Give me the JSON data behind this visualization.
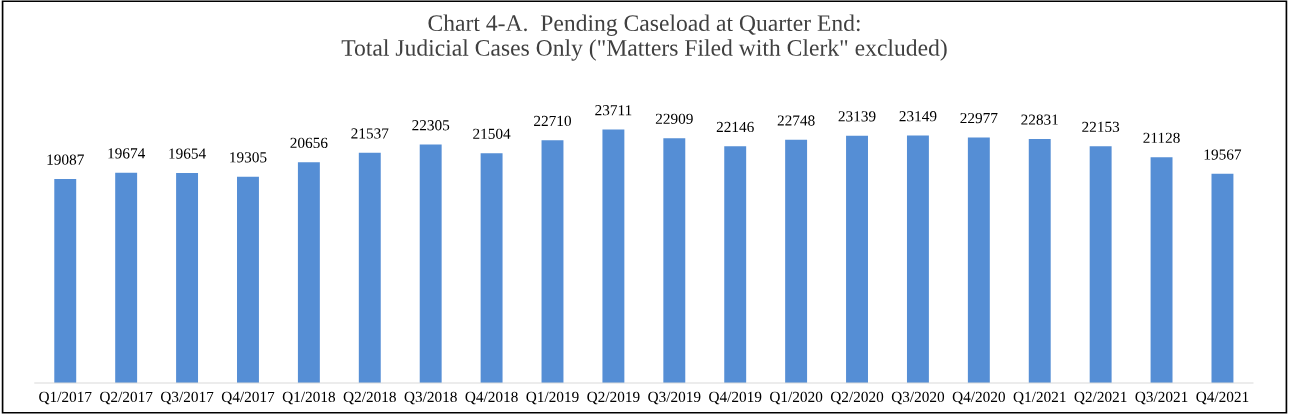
{
  "chart_data": {
    "type": "bar",
    "title": "Chart 4-A.  Pending Caseload at Quarter End:\nTotal Judicial Cases Only (\"Matters Filed with Clerk\" excluded)",
    "categories": [
      "Q1/2017",
      "Q2/2017",
      "Q3/2017",
      "Q4/2017",
      "Q1/2018",
      "Q2/2018",
      "Q3/2018",
      "Q4/2018",
      "Q1/2019",
      "Q2/2019",
      "Q3/2019",
      "Q4/2019",
      "Q1/2020",
      "Q2/2020",
      "Q3/2020",
      "Q4/2020",
      "Q1/2021",
      "Q2/2021",
      "Q3/2021",
      "Q4/2021"
    ],
    "values": [
      19087,
      19674,
      19654,
      19305,
      20656,
      21537,
      22305,
      21504,
      22710,
      23711,
      22909,
      22146,
      22748,
      23139,
      23149,
      22977,
      22831,
      22153,
      21128,
      19567
    ],
    "color": "#558ed5",
    "data_labels": true,
    "grid": false,
    "legend": false
  }
}
